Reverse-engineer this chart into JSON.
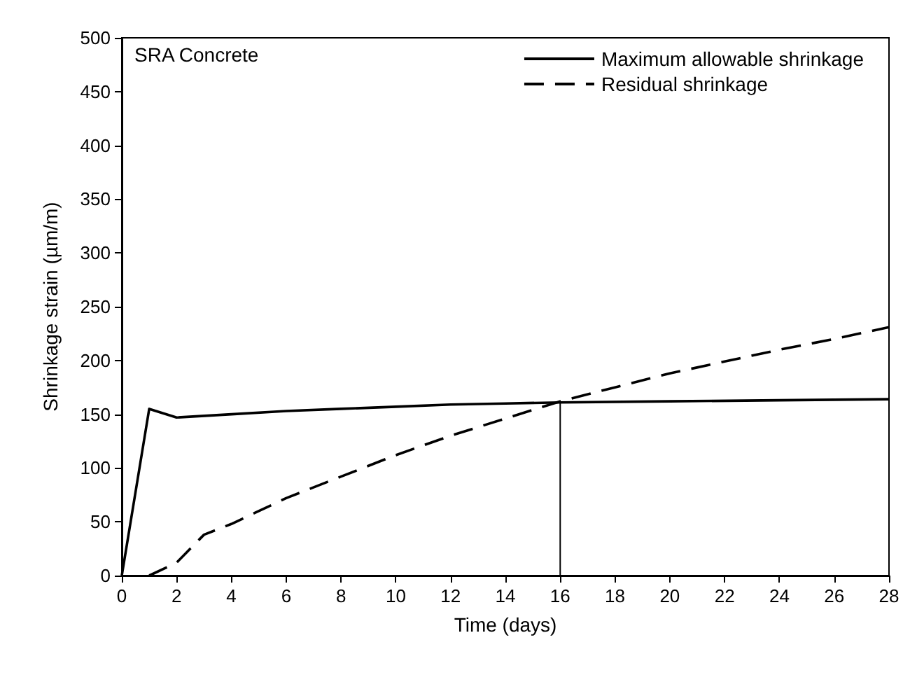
{
  "chart_data": {
    "type": "line",
    "xlabel": "Time (days)",
    "ylabel": "Shrinkage strain (µm/m)",
    "annotations": [
      "SRA Concrete"
    ],
    "xlim": [
      0,
      28
    ],
    "xticks": [
      0,
      2,
      4,
      6,
      8,
      10,
      12,
      14,
      16,
      18,
      20,
      22,
      24,
      26,
      28
    ],
    "ylim": [
      0,
      500
    ],
    "yticks": [
      0,
      50,
      100,
      150,
      200,
      250,
      300,
      350,
      400,
      450,
      500
    ],
    "grid": false,
    "legend": "top right",
    "marker": "none",
    "series": [
      {
        "name": "Maximum allowable shrinkage",
        "color": "#000000",
        "line_style": "solid",
        "x": [
          0,
          1,
          2,
          4,
          6,
          8,
          10,
          12,
          14,
          16,
          20,
          24,
          28
        ],
        "values": [
          0,
          155,
          147,
          150,
          153,
          155,
          157,
          159,
          160,
          161,
          162,
          163,
          164
        ]
      },
      {
        "name": "Residual shrinkage",
        "color": "#000000",
        "line_style": "dashed",
        "x": [
          1,
          2,
          3,
          4,
          6,
          8,
          10,
          12,
          14,
          16,
          18,
          20,
          22,
          24,
          26,
          28
        ],
        "values": [
          0,
          12,
          38,
          48,
          72,
          92,
          112,
          130,
          146,
          162,
          175,
          188,
          199,
          210,
          220,
          231
        ]
      },
      {
        "color": "#000000",
        "line_style": "solid",
        "x": [
          16,
          16
        ],
        "values": [
          0,
          162
        ]
      }
    ]
  }
}
